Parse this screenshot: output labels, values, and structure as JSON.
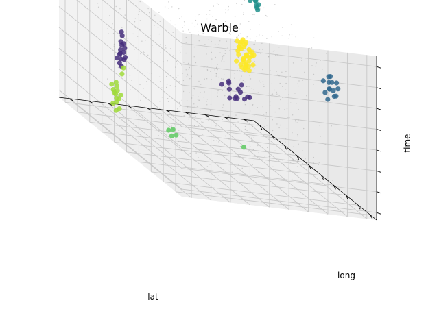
{
  "chart_data": {
    "type": "scatter3d",
    "title": "Warble",
    "xlabel": "lat",
    "ylabel": "long",
    "zlabel": "time",
    "tick_labels_shown": false,
    "grid": true,
    "noise_color": "#aaaaaa",
    "series": [
      {
        "color": "#440154",
        "points": [
          [
            1.5,
            9.3,
            9.3
          ],
          [
            1.3,
            9.2,
            9.25
          ],
          [
            1.4,
            9.4,
            9.2
          ],
          [
            1.2,
            9.3,
            9.15
          ],
          [
            1.45,
            9.35,
            9.3
          ]
        ]
      },
      {
        "color": "#472f7d",
        "points": [
          [
            4.6,
            6.3,
            3.6
          ],
          [
            4.2,
            6.1,
            3.3
          ],
          [
            5.0,
            6.0,
            3.2
          ],
          [
            4.4,
            6.6,
            3.8
          ],
          [
            4.8,
            6.5,
            3.1
          ],
          [
            3.9,
            5.9,
            3.4
          ],
          [
            4.5,
            6.2,
            2.9
          ],
          [
            5.2,
            6.4,
            3.5
          ],
          [
            4.3,
            6.0,
            3.9
          ],
          [
            4.7,
            5.8,
            3.0
          ],
          [
            4.1,
            6.5,
            2.8
          ],
          [
            5.1,
            6.1,
            3.7
          ],
          [
            4.9,
            6.7,
            3.3
          ],
          [
            4.0,
            6.2,
            3.6
          ],
          [
            1.6,
            2.2,
            4.8
          ],
          [
            1.5,
            2.3,
            4.5
          ],
          [
            1.7,
            2.1,
            4.2
          ],
          [
            1.55,
            2.25,
            3.9
          ],
          [
            1.6,
            2.15,
            3.6
          ],
          [
            1.5,
            2.2,
            3.3
          ],
          [
            1.65,
            2.3,
            3.0
          ],
          [
            1.6,
            2.1,
            2.7
          ],
          [
            1.45,
            2.2,
            3.2
          ],
          [
            1.7,
            2.25,
            3.5
          ],
          [
            1.8,
            2.05,
            3.1
          ],
          [
            1.55,
            2.35,
            4.0
          ],
          [
            1.4,
            2.1,
            2.9
          ],
          [
            1.6,
            2.2,
            2.5
          ],
          [
            1.7,
            2.3,
            3.8
          ],
          [
            1.9,
            2.2,
            3.3
          ]
        ]
      },
      {
        "color": "#31688e",
        "points": [
          [
            8.3,
            8.7,
            7.3
          ],
          [
            8.5,
            8.5,
            7.0
          ],
          [
            8.1,
            8.9,
            6.8
          ],
          [
            8.4,
            8.6,
            6.5
          ],
          [
            8.6,
            8.8,
            6.2
          ],
          [
            8.2,
            8.4,
            6.9
          ],
          [
            8.7,
            8.6,
            6.6
          ],
          [
            8.0,
            8.8,
            7.1
          ],
          [
            8.5,
            8.3,
            6.3
          ],
          [
            8.3,
            8.9,
            6.0
          ],
          [
            8.8,
            8.7,
            7.2
          ],
          [
            8.4,
            8.5,
            5.8
          ],
          [
            8.2,
            8.7,
            6.4
          ],
          [
            8.6,
            8.9,
            6.7
          ]
        ]
      },
      {
        "color": "#21918c",
        "points": [
          [
            2.7,
            8.4,
            8.6
          ],
          [
            2.5,
            8.5,
            8.5
          ],
          [
            2.9,
            8.3,
            8.4
          ],
          [
            2.6,
            8.6,
            8.3
          ],
          [
            2.8,
            8.4,
            8.2
          ],
          [
            2.7,
            8.5,
            8.0
          ],
          [
            2.4,
            8.3,
            8.4
          ]
        ]
      },
      {
        "color": "#5ec962",
        "points": [
          [
            5.0,
            2.7,
            0.6
          ],
          [
            4.8,
            2.6,
            0.4
          ],
          [
            5.1,
            2.8,
            0.3
          ],
          [
            4.9,
            2.7,
            0.1
          ],
          [
            6.8,
            5.2,
            1.0
          ]
        ]
      },
      {
        "color": "#a0da39",
        "points": [
          [
            1.8,
            1.8,
            1.5
          ],
          [
            1.7,
            1.9,
            1.2
          ],
          [
            1.9,
            1.8,
            1.0
          ],
          [
            1.8,
            1.7,
            0.8
          ],
          [
            1.6,
            1.9,
            0.6
          ],
          [
            1.75,
            1.85,
            0.4
          ],
          [
            1.85,
            1.8,
            0.2
          ],
          [
            1.7,
            1.7,
            0.0
          ],
          [
            1.9,
            1.9,
            -0.2
          ],
          [
            1.8,
            1.8,
            -0.4
          ],
          [
            1.65,
            1.75,
            0.9
          ],
          [
            1.95,
            1.85,
            0.5
          ],
          [
            1.8,
            2.1,
            2.1
          ],
          [
            1.6,
            2.3,
            2.4
          ],
          [
            1.75,
            1.6,
            1.3
          ],
          [
            1.85,
            2.0,
            0.7
          ]
        ]
      },
      {
        "color": "#fde725",
        "points": [
          [
            4.5,
            6.7,
            6.6
          ],
          [
            4.3,
            6.6,
            6.5
          ],
          [
            4.7,
            6.8,
            6.4
          ],
          [
            4.4,
            6.5,
            6.3
          ],
          [
            4.6,
            6.9,
            6.2
          ],
          [
            4.2,
            6.7,
            6.1
          ],
          [
            4.8,
            6.6,
            6.0
          ],
          [
            4.5,
            6.8,
            5.9
          ],
          [
            4.3,
            6.9,
            5.8
          ],
          [
            4.7,
            6.5,
            5.7
          ],
          [
            4.4,
            6.7,
            5.6
          ],
          [
            4.6,
            6.6,
            5.5
          ],
          [
            4.2,
            6.8,
            5.4
          ],
          [
            4.8,
            6.7,
            5.3
          ],
          [
            4.5,
            6.5,
            5.2
          ],
          [
            4.3,
            6.9,
            5.1
          ],
          [
            4.7,
            6.8,
            5.0
          ],
          [
            4.4,
            6.6,
            6.7
          ],
          [
            4.6,
            6.7,
            6.8
          ],
          [
            4.1,
            6.6,
            5.9
          ],
          [
            4.9,
            6.8,
            6.1
          ],
          [
            4.0,
            6.7,
            5.6
          ],
          [
            5.0,
            6.6,
            5.8
          ],
          [
            4.5,
            6.4,
            6.4
          ],
          [
            4.4,
            7.0,
            5.7
          ],
          [
            4.6,
            7.1,
            6.0
          ],
          [
            4.3,
            6.4,
            5.3
          ],
          [
            4.7,
            7.0,
            5.4
          ],
          [
            4.5,
            6.7,
            4.9
          ],
          [
            4.2,
            6.5,
            6.6
          ],
          [
            4.8,
            6.9,
            6.3
          ],
          [
            4.4,
            6.8,
            5.0
          ],
          [
            4.6,
            6.5,
            5.1
          ],
          [
            4.5,
            6.6,
            6.9
          ],
          [
            4.1,
            6.9,
            6.2
          ],
          [
            4.9,
            6.5,
            5.5
          ]
        ]
      }
    ]
  }
}
